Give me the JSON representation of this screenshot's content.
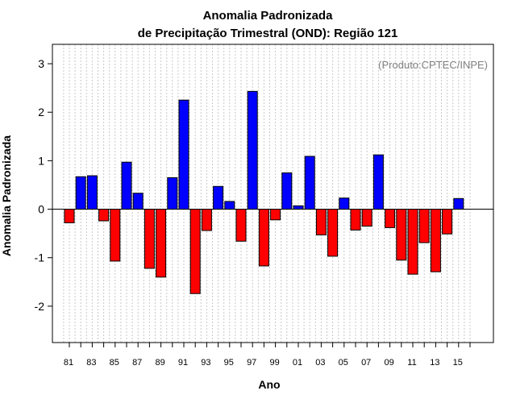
{
  "chart_data": {
    "type": "bar",
    "title": "Anomalia Padronizada",
    "subtitle": "de Precipitação Trimestral (OND): Região 121",
    "xlabel": "Ano",
    "ylabel": "Anomalia Padronizada",
    "annotation": "(Produto:CPTEC/INPE)",
    "ylim": [
      -2.75,
      3.4
    ],
    "yticks": [
      -2,
      -1,
      0,
      1,
      2,
      3
    ],
    "years": [
      1981,
      1982,
      1983,
      1984,
      1985,
      1986,
      1987,
      1988,
      1989,
      1990,
      1991,
      1992,
      1993,
      1994,
      1995,
      1996,
      1997,
      1998,
      1999,
      2000,
      2001,
      2002,
      2003,
      2004,
      2005,
      2006,
      2007,
      2008,
      2009,
      2010,
      2011,
      2012,
      2013,
      2014,
      2015
    ],
    "xtick_labels": [
      "81",
      "83",
      "85",
      "87",
      "89",
      "91",
      "93",
      "95",
      "97",
      "99",
      "01",
      "03",
      "05",
      "07",
      "09",
      "11",
      "13",
      "15"
    ],
    "values": [
      -0.28,
      0.67,
      0.69,
      -0.24,
      -1.07,
      0.97,
      0.33,
      -1.22,
      -1.4,
      0.65,
      2.25,
      -1.74,
      -0.44,
      0.47,
      0.16,
      -0.66,
      2.43,
      -1.17,
      -0.22,
      0.75,
      0.07,
      1.09,
      -0.53,
      -0.97,
      0.23,
      -0.43,
      -0.35,
      1.12,
      -0.38,
      -1.05,
      -1.34,
      -0.69,
      -1.29,
      -0.51,
      0.22
    ],
    "grid": true,
    "colors": {
      "positive": "#0000ff",
      "negative": "#ff0000",
      "bar_edge": "#000000",
      "grid": "#c8c8c8",
      "zero_line": "#000000"
    }
  }
}
